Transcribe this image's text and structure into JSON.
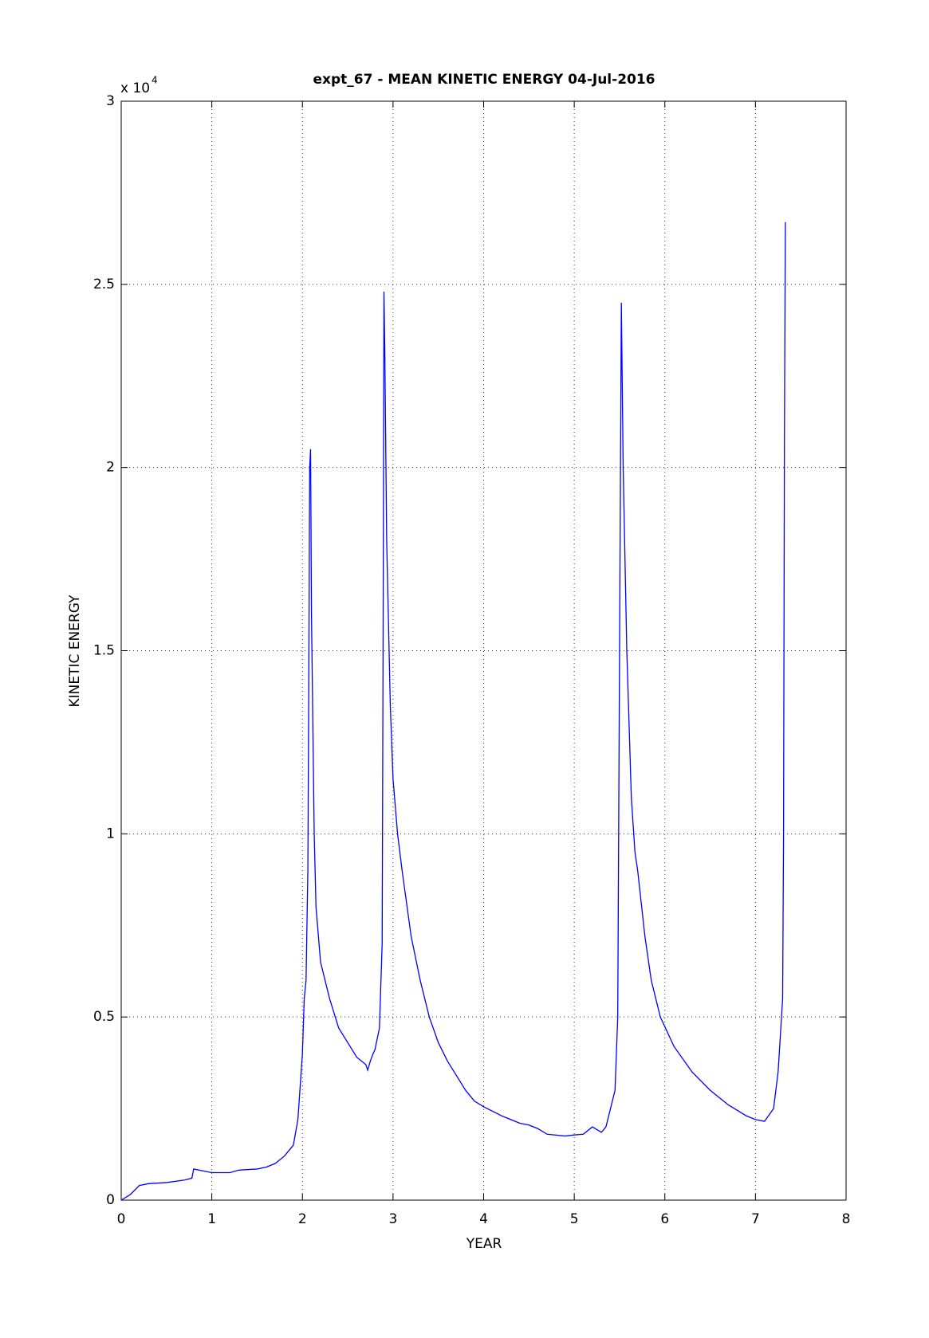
{
  "chart_data": {
    "type": "line",
    "title": "expt_67 - MEAN KINETIC ENERGY 04-Jul-2016",
    "x_label": "YEAR",
    "y_label": "KINETIC ENERGY",
    "y_multiplier": {
      "base": "x 10",
      "exponent": "4"
    },
    "xlim": [
      0,
      8
    ],
    "xticks": [
      0,
      1,
      2,
      3,
      4,
      5,
      6,
      7,
      8
    ],
    "ylim": [
      0,
      3
    ],
    "yticks": [
      0,
      0.5,
      1,
      1.5,
      2,
      2.5,
      3
    ],
    "grid": true,
    "x": [
      0,
      0.1,
      0.2,
      0.3,
      0.5,
      0.7,
      0.78,
      0.8,
      0.9,
      1.0,
      1.2,
      1.3,
      1.5,
      1.6,
      1.7,
      1.8,
      1.9,
      1.95,
      2.0,
      2.02,
      2.04,
      2.06,
      2.07,
      2.08,
      2.09,
      2.1,
      2.13,
      2.15,
      2.2,
      2.3,
      2.4,
      2.5,
      2.6,
      2.7,
      2.72,
      2.75,
      2.78,
      2.8,
      2.85,
      2.88,
      2.89,
      2.9,
      2.91,
      2.93,
      2.97,
      3.0,
      3.05,
      3.1,
      3.2,
      3.3,
      3.4,
      3.5,
      3.6,
      3.7,
      3.8,
      3.9,
      4.0,
      4.2,
      4.4,
      4.5,
      4.6,
      4.7,
      4.9,
      5.0,
      5.1,
      5.2,
      5.3,
      5.35,
      5.45,
      5.48,
      5.5,
      5.52,
      5.54,
      5.58,
      5.63,
      5.67,
      5.7,
      5.78,
      5.85,
      5.95,
      6.1,
      6.3,
      6.5,
      6.7,
      6.9,
      7.0,
      7.1,
      7.2,
      7.25,
      7.3,
      7.31,
      7.32,
      7.33
    ],
    "series": [
      {
        "color": "#0000ff",
        "values": [
          0,
          0.015,
          0.04,
          0.045,
          0.048,
          0.055,
          0.06,
          0.085,
          0.08,
          0.075,
          0.075,
          0.082,
          0.085,
          0.09,
          0.1,
          0.12,
          0.15,
          0.22,
          0.4,
          0.55,
          0.6,
          0.9,
          1.4,
          2.0,
          2.05,
          1.6,
          1.0,
          0.8,
          0.65,
          0.55,
          0.47,
          0.43,
          0.39,
          0.37,
          0.355,
          0.38,
          0.4,
          0.41,
          0.47,
          0.7,
          1.5,
          2.48,
          2.3,
          1.8,
          1.35,
          1.15,
          1.0,
          0.9,
          0.72,
          0.6,
          0.5,
          0.43,
          0.38,
          0.34,
          0.3,
          0.27,
          0.255,
          0.23,
          0.21,
          0.205,
          0.195,
          0.18,
          0.175,
          0.178,
          0.18,
          0.2,
          0.185,
          0.2,
          0.3,
          0.5,
          1.5,
          2.45,
          2.0,
          1.5,
          1.1,
          0.95,
          0.9,
          0.72,
          0.6,
          0.5,
          0.42,
          0.35,
          0.3,
          0.26,
          0.23,
          0.22,
          0.215,
          0.25,
          0.35,
          0.55,
          1.0,
          2.1,
          2.67
        ]
      }
    ]
  }
}
